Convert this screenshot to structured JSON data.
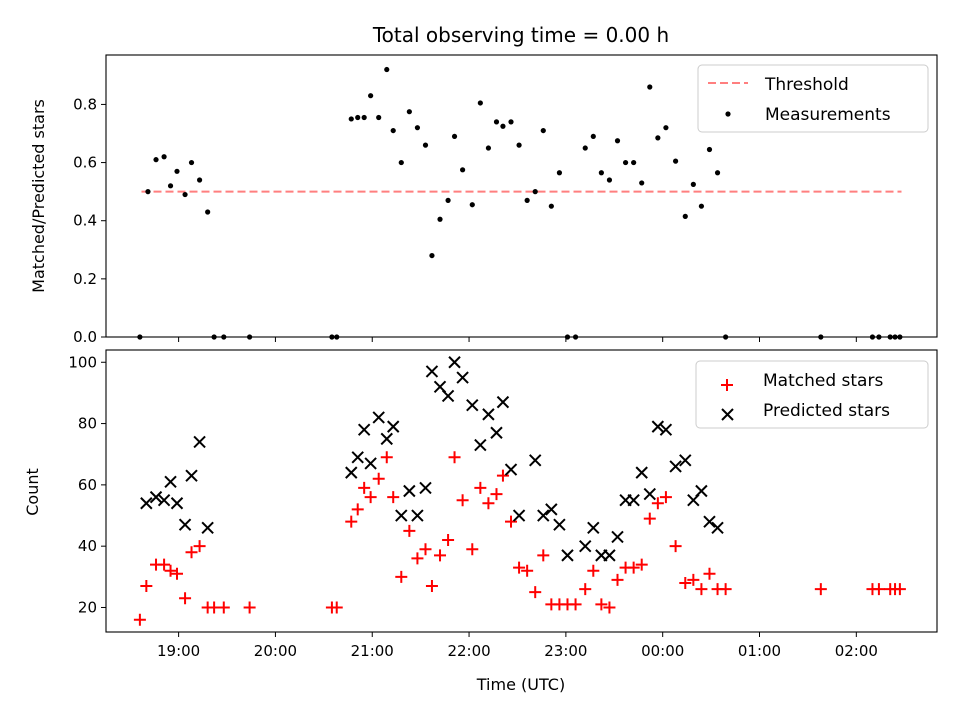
{
  "chart_data": [
    {
      "type": "scatter",
      "title": "Total observing time = 0.00 h",
      "xlabel": "",
      "ylabel": "Matched/Predicted stars",
      "xlim": [
        "18:15",
        "02:50"
      ],
      "ylim": [
        0,
        0.97
      ],
      "x_tick_labels": [
        "19:00",
        "20:00",
        "21:00",
        "22:00",
        "23:00",
        "00:00",
        "01:00",
        "02:00"
      ],
      "x_tick_labels_shown": false,
      "y_ticks": [
        0.0,
        0.2,
        0.4,
        0.6,
        0.8
      ],
      "y_tick_labels": [
        "0.0",
        "0.2",
        "0.4",
        "0.6",
        "0.8"
      ],
      "legend": {
        "position": "top-right",
        "entries": [
          {
            "label": "Threshold",
            "marker": "dashed-line",
            "color": "#ff7f7f"
          },
          {
            "label": "Measurements",
            "marker": "dot",
            "color": "#000000"
          }
        ]
      },
      "series": [
        {
          "name": "Threshold",
          "kind": "dashed-line",
          "color": "#ff7f7f",
          "points": [
            {
              "x": "18:37",
              "y": 0.5
            },
            {
              "x": "02:28",
              "y": 0.5
            }
          ]
        },
        {
          "name": "Measurements",
          "kind": "dot",
          "color": "#000000",
          "points": [
            {
              "x": "18:36",
              "y": 0.0
            },
            {
              "x": "18:41",
              "y": 0.5
            },
            {
              "x": "18:46",
              "y": 0.61
            },
            {
              "x": "18:51",
              "y": 0.62
            },
            {
              "x": "18:55",
              "y": 0.52
            },
            {
              "x": "18:59",
              "y": 0.57
            },
            {
              "x": "19:04",
              "y": 0.49
            },
            {
              "x": "19:08",
              "y": 0.6
            },
            {
              "x": "19:13",
              "y": 0.54
            },
            {
              "x": "19:18",
              "y": 0.43
            },
            {
              "x": "19:22",
              "y": 0.0
            },
            {
              "x": "19:28",
              "y": 0.0
            },
            {
              "x": "19:44",
              "y": 0.0
            },
            {
              "x": "20:35",
              "y": 0.0
            },
            {
              "x": "20:38",
              "y": 0.0
            },
            {
              "x": "20:47",
              "y": 0.75
            },
            {
              "x": "20:51",
              "y": 0.755
            },
            {
              "x": "20:55",
              "y": 0.755
            },
            {
              "x": "20:59",
              "y": 0.83
            },
            {
              "x": "21:04",
              "y": 0.755
            },
            {
              "x": "21:09",
              "y": 0.92
            },
            {
              "x": "21:13",
              "y": 0.71
            },
            {
              "x": "21:18",
              "y": 0.6
            },
            {
              "x": "21:23",
              "y": 0.775
            },
            {
              "x": "21:28",
              "y": 0.72
            },
            {
              "x": "21:33",
              "y": 0.66
            },
            {
              "x": "21:37",
              "y": 0.28
            },
            {
              "x": "21:42",
              "y": 0.405
            },
            {
              "x": "21:47",
              "y": 0.47
            },
            {
              "x": "21:51",
              "y": 0.69
            },
            {
              "x": "21:56",
              "y": 0.575
            },
            {
              "x": "22:02",
              "y": 0.455
            },
            {
              "x": "22:07",
              "y": 0.805
            },
            {
              "x": "22:12",
              "y": 0.65
            },
            {
              "x": "22:17",
              "y": 0.74
            },
            {
              "x": "22:21",
              "y": 0.725
            },
            {
              "x": "22:26",
              "y": 0.74
            },
            {
              "x": "22:31",
              "y": 0.66
            },
            {
              "x": "22:36",
              "y": 0.47
            },
            {
              "x": "22:41",
              "y": 0.5
            },
            {
              "x": "22:46",
              "y": 0.71
            },
            {
              "x": "22:51",
              "y": 0.45
            },
            {
              "x": "22:56",
              "y": 0.565
            },
            {
              "x": "23:01",
              "y": 0.0
            },
            {
              "x": "23:06",
              "y": 0.0
            },
            {
              "x": "23:12",
              "y": 0.65
            },
            {
              "x": "23:17",
              "y": 0.69
            },
            {
              "x": "23:22",
              "y": 0.565
            },
            {
              "x": "23:27",
              "y": 0.54
            },
            {
              "x": "23:32",
              "y": 0.675
            },
            {
              "x": "23:37",
              "y": 0.6
            },
            {
              "x": "23:42",
              "y": 0.6
            },
            {
              "x": "23:47",
              "y": 0.53
            },
            {
              "x": "23:52",
              "y": 0.86
            },
            {
              "x": "23:57",
              "y": 0.685
            },
            {
              "x": "00:02",
              "y": 0.72
            },
            {
              "x": "00:08",
              "y": 0.605
            },
            {
              "x": "00:14",
              "y": 0.415
            },
            {
              "x": "00:19",
              "y": 0.525
            },
            {
              "x": "00:24",
              "y": 0.45
            },
            {
              "x": "00:29",
              "y": 0.645
            },
            {
              "x": "00:34",
              "y": 0.565
            },
            {
              "x": "00:39",
              "y": 0.0
            },
            {
              "x": "01:38",
              "y": 0.0
            },
            {
              "x": "02:10",
              "y": 0.0
            },
            {
              "x": "02:14",
              "y": 0.0
            },
            {
              "x": "02:21",
              "y": 0.0
            },
            {
              "x": "02:24",
              "y": 0.0
            },
            {
              "x": "02:27",
              "y": 0.0
            }
          ]
        }
      ]
    },
    {
      "type": "scatter",
      "title": "",
      "xlabel": "Time (UTC)",
      "ylabel": "Count",
      "xlim": [
        "18:15",
        "02:50"
      ],
      "ylim": [
        12,
        104
      ],
      "x_tick_labels": [
        "19:00",
        "20:00",
        "21:00",
        "22:00",
        "23:00",
        "00:00",
        "01:00",
        "02:00"
      ],
      "y_ticks": [
        20,
        40,
        60,
        80,
        100
      ],
      "y_tick_labels": [
        "20",
        "40",
        "60",
        "80",
        "100"
      ],
      "legend": {
        "position": "top-right",
        "entries": [
          {
            "label": "Matched stars",
            "marker": "plus",
            "color": "#ff0000"
          },
          {
            "label": "Predicted stars",
            "marker": "x",
            "color": "#000000"
          }
        ]
      },
      "series": [
        {
          "name": "Matched stars",
          "kind": "plus",
          "color": "#ff0000",
          "points": [
            {
              "x": "18:36",
              "y": 16
            },
            {
              "x": "18:40",
              "y": 27
            },
            {
              "x": "18:46",
              "y": 34
            },
            {
              "x": "18:51",
              "y": 34
            },
            {
              "x": "18:55",
              "y": 32
            },
            {
              "x": "18:59",
              "y": 31
            },
            {
              "x": "19:04",
              "y": 23
            },
            {
              "x": "19:08",
              "y": 38
            },
            {
              "x": "19:13",
              "y": 40
            },
            {
              "x": "19:18",
              "y": 20
            },
            {
              "x": "19:22",
              "y": 20
            },
            {
              "x": "19:28",
              "y": 20
            },
            {
              "x": "19:44",
              "y": 20
            },
            {
              "x": "20:35",
              "y": 20
            },
            {
              "x": "20:38",
              "y": 20
            },
            {
              "x": "20:47",
              "y": 48
            },
            {
              "x": "20:51",
              "y": 52
            },
            {
              "x": "20:55",
              "y": 59
            },
            {
              "x": "20:59",
              "y": 56
            },
            {
              "x": "21:04",
              "y": 62
            },
            {
              "x": "21:09",
              "y": 69
            },
            {
              "x": "21:13",
              "y": 56
            },
            {
              "x": "21:18",
              "y": 30
            },
            {
              "x": "21:23",
              "y": 45
            },
            {
              "x": "21:28",
              "y": 36
            },
            {
              "x": "21:33",
              "y": 39
            },
            {
              "x": "21:37",
              "y": 27
            },
            {
              "x": "21:42",
              "y": 37
            },
            {
              "x": "21:47",
              "y": 42
            },
            {
              "x": "21:51",
              "y": 69
            },
            {
              "x": "21:56",
              "y": 55
            },
            {
              "x": "22:02",
              "y": 39
            },
            {
              "x": "22:07",
              "y": 59
            },
            {
              "x": "22:12",
              "y": 54
            },
            {
              "x": "22:17",
              "y": 57
            },
            {
              "x": "22:21",
              "y": 63
            },
            {
              "x": "22:26",
              "y": 48
            },
            {
              "x": "22:31",
              "y": 33
            },
            {
              "x": "22:36",
              "y": 32
            },
            {
              "x": "22:41",
              "y": 25
            },
            {
              "x": "22:46",
              "y": 37
            },
            {
              "x": "22:51",
              "y": 21
            },
            {
              "x": "22:56",
              "y": 21
            },
            {
              "x": "23:01",
              "y": 21
            },
            {
              "x": "23:06",
              "y": 21
            },
            {
              "x": "23:12",
              "y": 26
            },
            {
              "x": "23:17",
              "y": 32
            },
            {
              "x": "23:22",
              "y": 21
            },
            {
              "x": "23:27",
              "y": 20
            },
            {
              "x": "23:32",
              "y": 29
            },
            {
              "x": "23:37",
              "y": 33
            },
            {
              "x": "23:42",
              "y": 33
            },
            {
              "x": "23:47",
              "y": 34
            },
            {
              "x": "23:52",
              "y": 49
            },
            {
              "x": "23:57",
              "y": 54
            },
            {
              "x": "00:02",
              "y": 56
            },
            {
              "x": "00:08",
              "y": 40
            },
            {
              "x": "00:14",
              "y": 28
            },
            {
              "x": "00:19",
              "y": 29
            },
            {
              "x": "00:24",
              "y": 26
            },
            {
              "x": "00:29",
              "y": 31
            },
            {
              "x": "00:34",
              "y": 26
            },
            {
              "x": "00:39",
              "y": 26
            },
            {
              "x": "01:38",
              "y": 26
            },
            {
              "x": "02:10",
              "y": 26
            },
            {
              "x": "02:14",
              "y": 26
            },
            {
              "x": "02:21",
              "y": 26
            },
            {
              "x": "02:24",
              "y": 26
            },
            {
              "x": "02:27",
              "y": 26
            }
          ]
        },
        {
          "name": "Predicted stars",
          "kind": "x",
          "color": "#000000",
          "points": [
            {
              "x": "18:40",
              "y": 54
            },
            {
              "x": "18:46",
              "y": 56
            },
            {
              "x": "18:51",
              "y": 55
            },
            {
              "x": "18:55",
              "y": 61
            },
            {
              "x": "18:59",
              "y": 54
            },
            {
              "x": "19:04",
              "y": 47
            },
            {
              "x": "19:08",
              "y": 63
            },
            {
              "x": "19:13",
              "y": 74
            },
            {
              "x": "19:18",
              "y": 46
            },
            {
              "x": "20:47",
              "y": 64
            },
            {
              "x": "20:51",
              "y": 69
            },
            {
              "x": "20:55",
              "y": 78
            },
            {
              "x": "20:59",
              "y": 67
            },
            {
              "x": "21:04",
              "y": 82
            },
            {
              "x": "21:09",
              "y": 75
            },
            {
              "x": "21:13",
              "y": 79
            },
            {
              "x": "21:18",
              "y": 50
            },
            {
              "x": "21:23",
              "y": 58
            },
            {
              "x": "21:28",
              "y": 50
            },
            {
              "x": "21:33",
              "y": 59
            },
            {
              "x": "21:37",
              "y": 97
            },
            {
              "x": "21:42",
              "y": 92
            },
            {
              "x": "21:47",
              "y": 89
            },
            {
              "x": "21:51",
              "y": 100
            },
            {
              "x": "21:56",
              "y": 95
            },
            {
              "x": "22:02",
              "y": 86
            },
            {
              "x": "22:07",
              "y": 73
            },
            {
              "x": "22:12",
              "y": 83
            },
            {
              "x": "22:17",
              "y": 77
            },
            {
              "x": "22:21",
              "y": 87
            },
            {
              "x": "22:26",
              "y": 65
            },
            {
              "x": "22:31",
              "y": 50
            },
            {
              "x": "22:41",
              "y": 68
            },
            {
              "x": "22:46",
              "y": 50
            },
            {
              "x": "22:51",
              "y": 52
            },
            {
              "x": "22:56",
              "y": 47
            },
            {
              "x": "23:01",
              "y": 37
            },
            {
              "x": "23:12",
              "y": 40
            },
            {
              "x": "23:17",
              "y": 46
            },
            {
              "x": "23:22",
              "y": 37
            },
            {
              "x": "23:27",
              "y": 37
            },
            {
              "x": "23:32",
              "y": 43
            },
            {
              "x": "23:37",
              "y": 55
            },
            {
              "x": "23:42",
              "y": 55
            },
            {
              "x": "23:47",
              "y": 64
            },
            {
              "x": "23:52",
              "y": 57
            },
            {
              "x": "23:57",
              "y": 79
            },
            {
              "x": "00:02",
              "y": 78
            },
            {
              "x": "00:08",
              "y": 66
            },
            {
              "x": "00:14",
              "y": 68
            },
            {
              "x": "00:19",
              "y": 55
            },
            {
              "x": "00:24",
              "y": 58
            },
            {
              "x": "00:29",
              "y": 48
            },
            {
              "x": "00:34",
              "y": 46
            }
          ]
        }
      ]
    }
  ]
}
